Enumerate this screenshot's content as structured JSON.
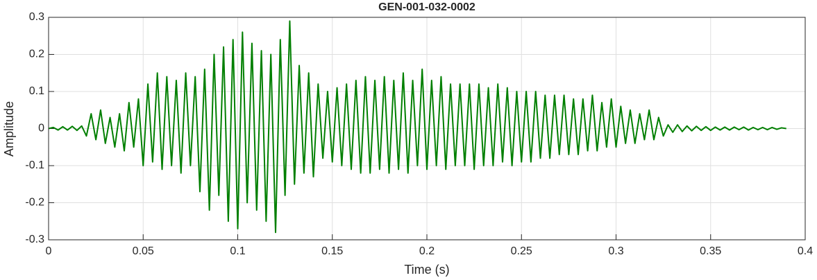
{
  "chart_data": {
    "type": "line",
    "title": "GEN-001-032-0002",
    "xlabel": "Time (s)",
    "ylabel": "Amplitude",
    "color": "#007f00",
    "grid": true,
    "xlim": [
      0,
      0.4
    ],
    "ylim": [
      -0.3,
      0.3
    ],
    "xticks": [
      0,
      0.05,
      0.1,
      0.15,
      0.2,
      0.25,
      0.3,
      0.35,
      0.4
    ],
    "yticks": [
      -0.3,
      -0.2,
      -0.1,
      0,
      0.1,
      0.2,
      0.3
    ],
    "x": [
      0,
      0.0025,
      0.005,
      0.0075,
      0.01,
      0.0125,
      0.015,
      0.0175,
      0.02,
      0.0225,
      0.025,
      0.0275,
      0.03,
      0.0325,
      0.035,
      0.0375,
      0.04,
      0.0425,
      0.045,
      0.0475,
      0.05,
      0.0525,
      0.055,
      0.0575,
      0.06,
      0.0625,
      0.065,
      0.0675,
      0.07,
      0.0725,
      0.075,
      0.0775,
      0.08,
      0.0825,
      0.085,
      0.0875,
      0.09,
      0.0925,
      0.095,
      0.0975,
      0.1,
      0.1025,
      0.105,
      0.1075,
      0.11,
      0.1125,
      0.115,
      0.1175,
      0.12,
      0.1225,
      0.125,
      0.1275,
      0.13,
      0.1325,
      0.135,
      0.1375,
      0.14,
      0.1425,
      0.145,
      0.1475,
      0.15,
      0.1525,
      0.155,
      0.1575,
      0.16,
      0.1625,
      0.165,
      0.1675,
      0.17,
      0.1725,
      0.175,
      0.1775,
      0.18,
      0.1825,
      0.185,
      0.1875,
      0.19,
      0.1925,
      0.195,
      0.1975,
      0.2,
      0.2025,
      0.205,
      0.2075,
      0.21,
      0.2125,
      0.215,
      0.2175,
      0.22,
      0.2225,
      0.225,
      0.2275,
      0.23,
      0.2325,
      0.235,
      0.2375,
      0.24,
      0.2425,
      0.245,
      0.2475,
      0.25,
      0.2525,
      0.255,
      0.2575,
      0.26,
      0.2625,
      0.265,
      0.2675,
      0.27,
      0.2725,
      0.275,
      0.2775,
      0.28,
      0.2825,
      0.285,
      0.2875,
      0.29,
      0.2925,
      0.295,
      0.2975,
      0.3,
      0.3025,
      0.305,
      0.3075,
      0.31,
      0.3125,
      0.315,
      0.3175,
      0.32,
      0.3225,
      0.325,
      0.3275,
      0.33,
      0.3325,
      0.335,
      0.3375,
      0.34,
      0.3425,
      0.345,
      0.3475,
      0.35,
      0.3525,
      0.355,
      0.3575,
      0.36,
      0.3625,
      0.365,
      0.3675,
      0.37,
      0.3725,
      0.375,
      0.3775,
      0.38,
      0.3825,
      0.385,
      0.3875,
      0.39
    ],
    "values": [
      0,
      0.003,
      -0.004,
      0.005,
      -0.004,
      0.006,
      -0.005,
      0.007,
      -0.02,
      0.04,
      -0.03,
      0.05,
      -0.04,
      0.03,
      -0.05,
      0.04,
      -0.06,
      0.07,
      -0.05,
      0.08,
      -0.1,
      0.12,
      -0.09,
      0.15,
      -0.11,
      0.14,
      -0.1,
      0.13,
      -0.12,
      0.15,
      -0.1,
      0.14,
      -0.17,
      0.16,
      -0.22,
      0.2,
      -0.18,
      0.22,
      -0.25,
      0.24,
      -0.27,
      0.26,
      -0.2,
      0.23,
      -0.22,
      0.21,
      -0.25,
      0.2,
      -0.28,
      0.24,
      -0.18,
      0.29,
      -0.15,
      0.17,
      -0.12,
      0.15,
      -0.13,
      0.12,
      -0.08,
      0.1,
      -0.09,
      0.11,
      -0.1,
      0.12,
      -0.11,
      0.13,
      -0.12,
      0.14,
      -0.12,
      0.13,
      -0.11,
      0.14,
      -0.12,
      0.13,
      -0.11,
      0.15,
      -0.12,
      0.13,
      -0.1,
      0.16,
      -0.11,
      0.13,
      -0.1,
      0.14,
      -0.11,
      0.12,
      -0.1,
      0.12,
      -0.1,
      0.12,
      -0.11,
      0.12,
      -0.1,
      0.11,
      -0.1,
      0.12,
      -0.09,
      0.11,
      -0.1,
      0.1,
      -0.09,
      0.1,
      -0.09,
      0.1,
      -0.08,
      0.09,
      -0.08,
      0.09,
      -0.07,
      0.09,
      -0.07,
      0.08,
      -0.07,
      0.08,
      -0.06,
      0.09,
      -0.06,
      0.07,
      -0.05,
      0.08,
      -0.05,
      0.06,
      -0.04,
      0.05,
      -0.04,
      0.04,
      -0.03,
      0.05,
      -0.03,
      0.03,
      -0.02,
      0.01,
      -0.01,
      0.01,
      -0.008,
      0.007,
      -0.006,
      0.006,
      -0.005,
      0.005,
      -0.005,
      0.004,
      -0.004,
      0.004,
      -0.004,
      0.004,
      -0.003,
      0.004,
      -0.004,
      0.003,
      -0.003,
      0.003,
      -0.003,
      0.003,
      -0.002,
      0.002,
      0
    ]
  }
}
